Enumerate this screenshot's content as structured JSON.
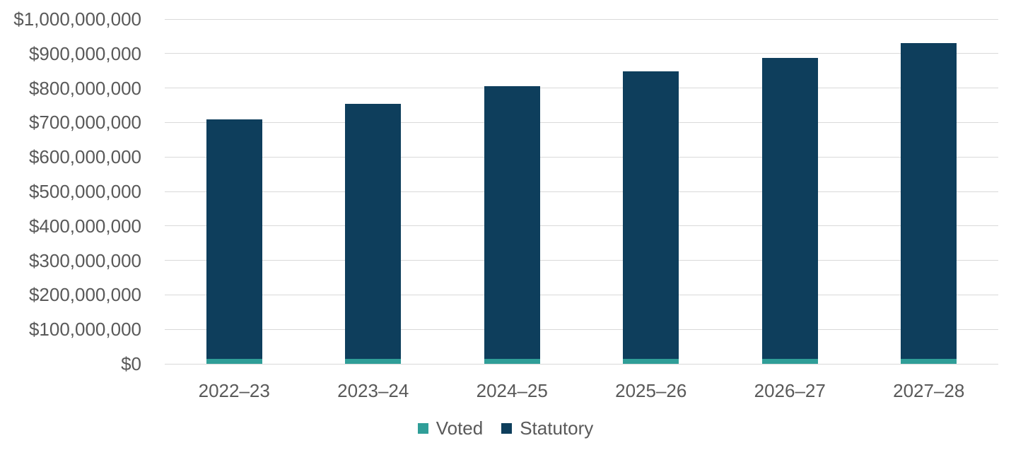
{
  "chart_data": {
    "type": "bar",
    "stacked": true,
    "categories": [
      "2022–23",
      "2023–24",
      "2024–25",
      "2025–26",
      "2026–27",
      "2027–28"
    ],
    "series": [
      {
        "name": "Voted",
        "color": "#2f9e98",
        "values": [
          15000000,
          15000000,
          15000000,
          15000000,
          15000000,
          15000000
        ]
      },
      {
        "name": "Statutory",
        "color": "#0e3e5c",
        "values": [
          695000000,
          739000000,
          790000000,
          833000000,
          872000000,
          915000000
        ]
      }
    ],
    "totals": [
      710000000,
      754000000,
      805000000,
      848000000,
      887000000,
      930000000
    ],
    "y_axis": {
      "min": 0,
      "max": 1000000000,
      "step": 100000000,
      "tick_labels": [
        "$1,000,000,000",
        "$900,000,000",
        "$800,000,000",
        "$700,000,000",
        "$600,000,000",
        "$500,000,000",
        "$400,000,000",
        "$300,000,000",
        "$200,000,000",
        "$100,000,000",
        "$0"
      ]
    },
    "grid": true,
    "legend_position": "bottom"
  },
  "colors": {
    "grid": "#d9d9d9",
    "text": "#595959",
    "background": "#ffffff",
    "voted": "#2f9e98",
    "statutory": "#0e3e5c"
  }
}
